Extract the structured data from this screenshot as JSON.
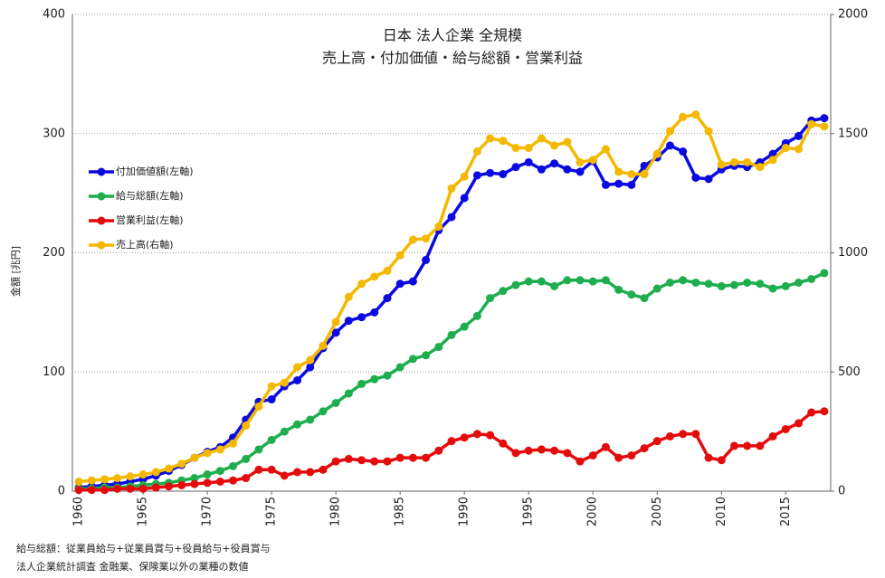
{
  "chart_data": {
    "type": "line",
    "title": "日本 法人企業 全規模",
    "subtitle": "売上高・付加価値・給与総額・営業利益",
    "y_label": "金額 [兆円]",
    "notes": [
      "給与総額：従業員給与+従業員賞与+役員給与+役員賞与",
      "法人企業統計調査 金融業、保険業以外の業種の数値"
    ],
    "x": [
      1960,
      1961,
      1962,
      1963,
      1964,
      1965,
      1966,
      1967,
      1968,
      1969,
      1970,
      1971,
      1972,
      1973,
      1974,
      1975,
      1976,
      1977,
      1978,
      1979,
      1980,
      1981,
      1982,
      1983,
      1984,
      1985,
      1986,
      1987,
      1988,
      1989,
      1990,
      1991,
      1992,
      1993,
      1994,
      1995,
      1996,
      1997,
      1998,
      1999,
      2000,
      2001,
      2002,
      2003,
      2004,
      2005,
      2006,
      2007,
      2008,
      2009,
      2010,
      2011,
      2012,
      2013,
      2014,
      2015,
      2016,
      2017,
      2018
    ],
    "xlim": [
      1959.5,
      2018.5
    ],
    "xticks": [
      1960,
      1965,
      1970,
      1975,
      1980,
      1985,
      1990,
      1995,
      2000,
      2005,
      2010,
      2015
    ],
    "ylim": [
      0,
      400
    ],
    "yticks": [
      0,
      100,
      200,
      300,
      400
    ],
    "y2lim": [
      0,
      2000
    ],
    "y2ticks": [
      0,
      500,
      1000,
      1500,
      2000
    ],
    "grid": true,
    "series": [
      {
        "name": "付加価値額(左軸)",
        "color": "#0a0ae0",
        "values": [
          3,
          4,
          5,
          6,
          8,
          10,
          13,
          17,
          22,
          28,
          33,
          37,
          45,
          60,
          75,
          77,
          88,
          93,
          104,
          120,
          133,
          143,
          146,
          150,
          162,
          174,
          176,
          194,
          219,
          230,
          246,
          265,
          267,
          266,
          272,
          276,
          270,
          275,
          270,
          268,
          277,
          257,
          258,
          257,
          273,
          280,
          290,
          285,
          263,
          262,
          270,
          273,
          272,
          276,
          283,
          292,
          298,
          311,
          313
        ]
      },
      {
        "name": "給与総額(左軸)",
        "color": "#1fae4e",
        "values": [
          2,
          2,
          3,
          3,
          4,
          5,
          6,
          7,
          9,
          11,
          14,
          17,
          21,
          27,
          35,
          43,
          50,
          56,
          60,
          67,
          74,
          82,
          90,
          94,
          97,
          104,
          111,
          114,
          121,
          131,
          138,
          147,
          162,
          168,
          173,
          176,
          176,
          172,
          177,
          177,
          176,
          177,
          169,
          165,
          162,
          170,
          175,
          177,
          175,
          174,
          172,
          173,
          175,
          174,
          170,
          172,
          175,
          178,
          183
        ]
      },
      {
        "name": "営業利益(左軸)",
        "color": "#e30b0b",
        "values": [
          1,
          1,
          1,
          2,
          2,
          2,
          3,
          4,
          5,
          6,
          7,
          8,
          9,
          11,
          18,
          18,
          13,
          16,
          16,
          18,
          25,
          27,
          26,
          25,
          25,
          28,
          28,
          28,
          34,
          42,
          45,
          48,
          47,
          40,
          32,
          34,
          35,
          34,
          32,
          25,
          30,
          37,
          28,
          30,
          36,
          42,
          46,
          48,
          48,
          28,
          26,
          38,
          38,
          38,
          46,
          52,
          57,
          66,
          67
        ]
      },
      {
        "name": "売上高(右軸)",
        "color": "#f5b800",
        "axis": "y2",
        "values": [
          40,
          45,
          50,
          55,
          62,
          70,
          80,
          95,
          115,
          140,
          160,
          175,
          200,
          275,
          355,
          440,
          455,
          520,
          550,
          610,
          710,
          815,
          870,
          900,
          925,
          990,
          1055,
          1060,
          1110,
          1270,
          1320,
          1425,
          1480,
          1470,
          1440,
          1440,
          1480,
          1450,
          1465,
          1380,
          1390,
          1435,
          1340,
          1330,
          1330,
          1415,
          1510,
          1570,
          1580,
          1510,
          1370,
          1380,
          1380,
          1360,
          1390,
          1440,
          1435,
          1540,
          1530
        ]
      }
    ]
  }
}
